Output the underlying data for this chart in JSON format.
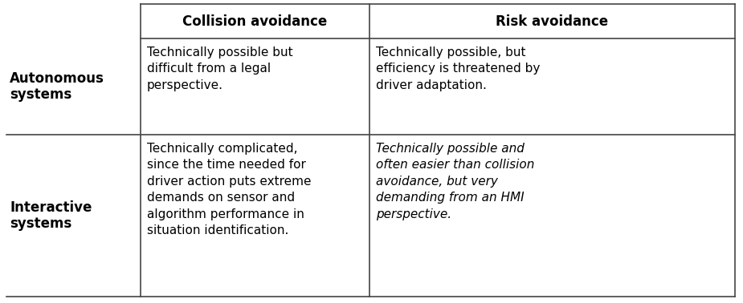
{
  "col_headers": [
    "Collision avoidance",
    "Risk avoidance"
  ],
  "row_headers": [
    "Autonomous\nsystems",
    "Interactive\nsystems"
  ],
  "cells": [
    [
      "Technically possible but\ndifficult from a legal\nperspective.",
      "Technically possible, but\nefficiency is threatened by\ndriver adaptation."
    ],
    [
      "Technically complicated,\nsince the time needed for\ndriver action puts extreme\ndemands on sensor and\nalgorithm performance in\nsituation identification.",
      "Technically possible and\noften easier than collision\navoidance, but very\ndemanding from an HMI\nperspective."
    ]
  ],
  "cell_italic": [
    [
      false,
      false
    ],
    [
      false,
      true
    ]
  ],
  "bg_color": "#ffffff",
  "text_color": "#000000",
  "header_fontsize": 12,
  "row_header_fontsize": 12,
  "cell_fontsize": 11,
  "line_color": "#444444",
  "line_width": 1.2
}
